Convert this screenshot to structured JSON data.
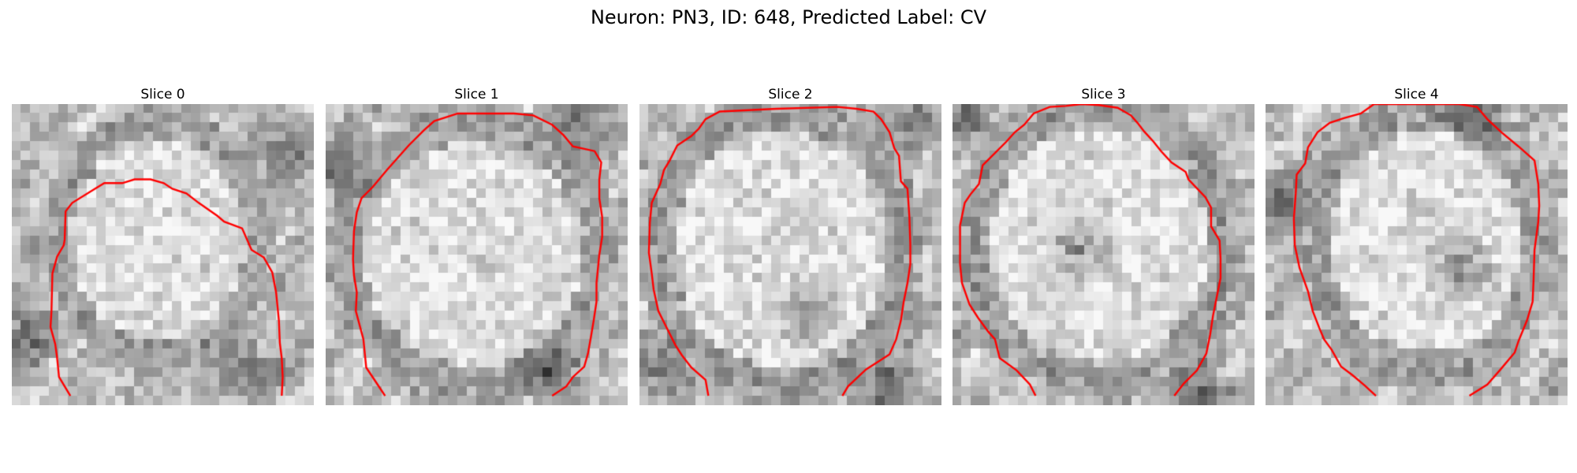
{
  "figure": {
    "title": "Neuron: PN3, ID: 648, Predicted Label: CV"
  },
  "slices": [
    {
      "title": "Slice 0"
    },
    {
      "title": "Slice 1"
    },
    {
      "title": "Slice 2"
    },
    {
      "title": "Slice 3"
    },
    {
      "title": "Slice 4"
    }
  ],
  "colors": {
    "contour": "#ff0000"
  }
}
